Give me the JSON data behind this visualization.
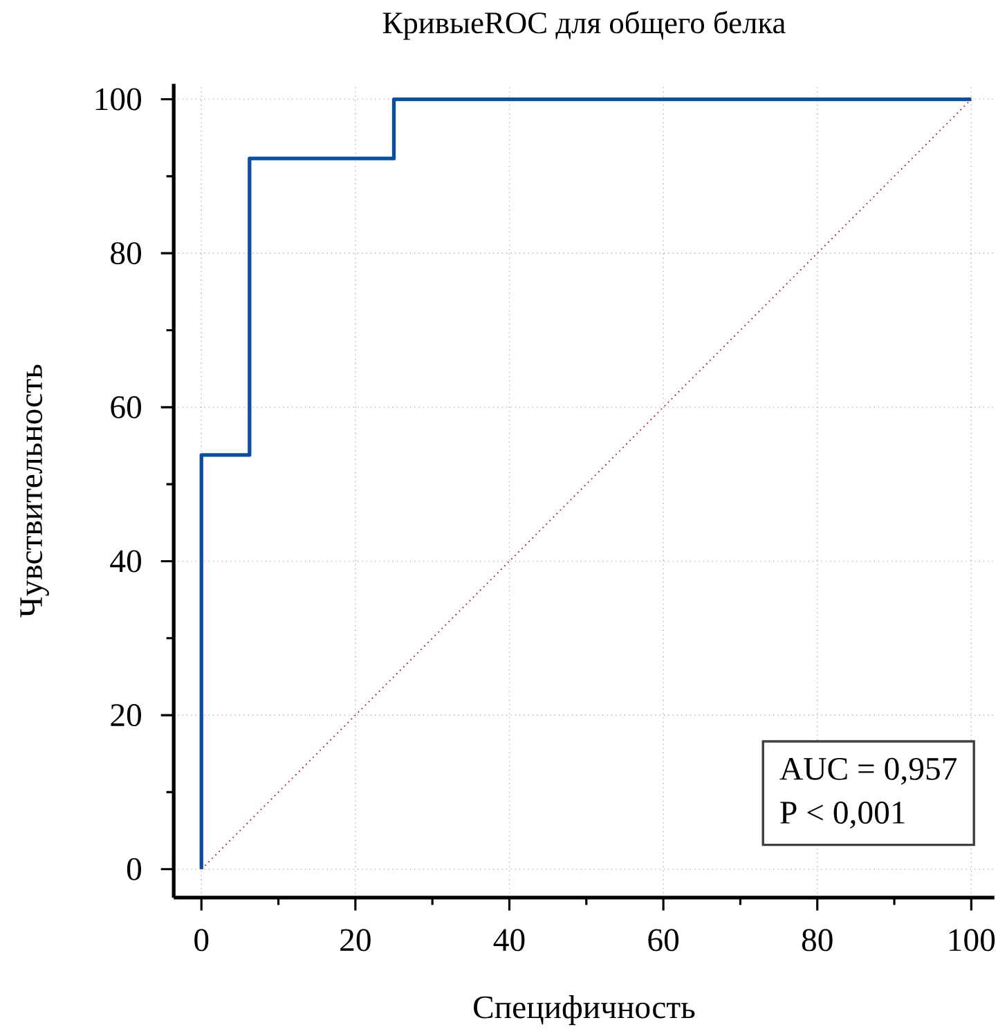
{
  "chart_data": {
    "type": "line",
    "title": "КривыеROC для общего белка",
    "xlabel": "Специфичность",
    "ylabel": "Чувствительность",
    "xlim": [
      -3.6,
      103
    ],
    "ylim": [
      -3.7,
      102
    ],
    "xticks": [
      0,
      20,
      40,
      60,
      80,
      100
    ],
    "yticks": [
      0,
      20,
      40,
      60,
      80,
      100
    ],
    "grid": true,
    "series": [
      {
        "type": "line",
        "color": "#0b4f9c",
        "x": [
          0,
          0,
          6.25,
          6.25,
          25,
          25,
          100
        ],
        "values": [
          0,
          53.8,
          53.8,
          92.3,
          92.3,
          100,
          100
        ],
        "line_style": "solid"
      },
      {
        "type": "line",
        "color": "#9a2a2a",
        "x": [
          0,
          100
        ],
        "values": [
          0,
          100
        ],
        "line_style": "dotted"
      }
    ],
    "annotations": [
      "AUC = 0,957",
      "P < 0,001"
    ]
  }
}
